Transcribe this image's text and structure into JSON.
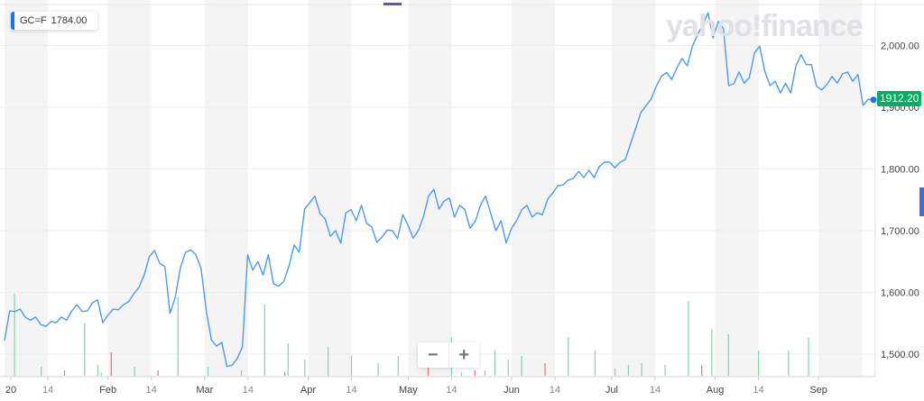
{
  "legend": {
    "symbol": "GC=F",
    "value": "1784.00"
  },
  "watermark": "yahoo!finance",
  "current_price_label": "1912.20",
  "zoom_controls": {
    "minus": "−",
    "plus": "+"
  },
  "colors": {
    "line": "#4a9af5",
    "up_volume": "#7fd6a8",
    "down_volume": "#f07070",
    "badge": "#00b061",
    "band": "#f4f4f4",
    "grid": "#ececec"
  },
  "chart_data": {
    "type": "line",
    "title": "GC=F",
    "xlabel": "",
    "ylabel": "",
    "x_range_days": [
      0,
      261
    ],
    "ylim": [
      1440,
      2060
    ],
    "grid": true,
    "y_ticks": [
      {
        "value": 1500,
        "label": "1,500.00"
      },
      {
        "value": 1600,
        "label": "1,600.00"
      },
      {
        "value": 1700,
        "label": "1,700.00"
      },
      {
        "value": 1800,
        "label": "1,800.00"
      },
      {
        "value": 1900,
        "label": "1,900.00"
      },
      {
        "value": 2000,
        "label": "2,000.00"
      }
    ],
    "x_ticks": [
      {
        "day": 0,
        "label": "20"
      },
      {
        "day": 13,
        "label": "14"
      },
      {
        "day": 31,
        "label": "Feb"
      },
      {
        "day": 44,
        "label": "14"
      },
      {
        "day": 60,
        "label": "Mar"
      },
      {
        "day": 73,
        "label": "14"
      },
      {
        "day": 91,
        "label": "Apr"
      },
      {
        "day": 104,
        "label": "14"
      },
      {
        "day": 121,
        "label": "May"
      },
      {
        "day": 134,
        "label": "14"
      },
      {
        "day": 152,
        "label": "Jun"
      },
      {
        "day": 165,
        "label": "14"
      },
      {
        "day": 182,
        "label": "Jul"
      },
      {
        "day": 195,
        "label": "14"
      },
      {
        "day": 213,
        "label": "Aug"
      },
      {
        "day": 226,
        "label": "14"
      },
      {
        "day": 244,
        "label": "Sep"
      }
    ],
    "series": [
      {
        "name": "GC=F",
        "values": [
          1522,
          1570,
          1569,
          1573,
          1560,
          1555,
          1560,
          1548,
          1545,
          1553,
          1551,
          1560,
          1555,
          1570,
          1580,
          1569,
          1570,
          1583,
          1588,
          1551,
          1563,
          1573,
          1572,
          1580,
          1585,
          1598,
          1608,
          1628,
          1658,
          1668,
          1647,
          1642,
          1566,
          1592,
          1640,
          1665,
          1669,
          1661,
          1639,
          1570,
          1523,
          1513,
          1519,
          1480,
          1482,
          1493,
          1512,
          1661,
          1636,
          1650,
          1628,
          1661,
          1614,
          1610,
          1618,
          1643,
          1677,
          1665,
          1735,
          1745,
          1756,
          1728,
          1719,
          1691,
          1700,
          1680,
          1729,
          1734,
          1716,
          1741,
          1712,
          1706,
          1681,
          1690,
          1701,
          1700,
          1687,
          1726,
          1709,
          1688,
          1700,
          1723,
          1756,
          1767,
          1735,
          1748,
          1753,
          1722,
          1741,
          1734,
          1704,
          1715,
          1741,
          1756,
          1728,
          1700,
          1716,
          1680,
          1704,
          1716,
          1734,
          1741,
          1722,
          1729,
          1726,
          1751,
          1761,
          1773,
          1774,
          1782,
          1785,
          1796,
          1786,
          1798,
          1786,
          1804,
          1811,
          1811,
          1802,
          1811,
          1815,
          1840,
          1865,
          1891,
          1902,
          1913,
          1934,
          1950,
          1956,
          1945,
          1964,
          1979,
          1967,
          1999,
          2018,
          2033,
          2053,
          2012,
          2039,
          2027,
          1935,
          1938,
          1957,
          1939,
          1948,
          1988,
          1999,
          1958,
          1935,
          1942,
          1923,
          1939,
          1923,
          1967,
          1985,
          1969,
          1969,
          1934,
          1928,
          1937,
          1950,
          1939,
          1954,
          1957,
          1942,
          1953,
          1903,
          1913,
          1912
        ]
      }
    ],
    "volume_relative": [
      {
        "day": 3,
        "v": 91,
        "dir": "up"
      },
      {
        "day": 11,
        "v": 10,
        "dir": "up"
      },
      {
        "day": 18,
        "v": 6,
        "dir": "down"
      },
      {
        "day": 24,
        "v": 58,
        "dir": "up"
      },
      {
        "day": 28,
        "v": 12,
        "dir": "up"
      },
      {
        "day": 29,
        "v": 4,
        "dir": "up"
      },
      {
        "day": 32,
        "v": 26,
        "dir": "down"
      },
      {
        "day": 39,
        "v": 10,
        "dir": "up"
      },
      {
        "day": 46,
        "v": 6,
        "dir": "down"
      },
      {
        "day": 52,
        "v": 88,
        "dir": "up"
      },
      {
        "day": 61,
        "v": 10,
        "dir": "up"
      },
      {
        "day": 71,
        "v": 6,
        "dir": "up"
      },
      {
        "day": 78,
        "v": 79,
        "dir": "up"
      },
      {
        "day": 84,
        "v": 4,
        "dir": "down"
      },
      {
        "day": 85,
        "v": 36,
        "dir": "up"
      },
      {
        "day": 90,
        "v": 18,
        "dir": "up"
      },
      {
        "day": 97,
        "v": 32,
        "dir": "up"
      },
      {
        "day": 104,
        "v": 22,
        "dir": "up"
      },
      {
        "day": 112,
        "v": 14,
        "dir": "up"
      },
      {
        "day": 118,
        "v": 22,
        "dir": "up"
      },
      {
        "day": 127,
        "v": 10,
        "dir": "down"
      },
      {
        "day": 134,
        "v": 43,
        "dir": "up"
      },
      {
        "day": 137,
        "v": 4,
        "dir": "up"
      },
      {
        "day": 141,
        "v": 6,
        "dir": "down"
      },
      {
        "day": 144,
        "v": 6,
        "dir": "up"
      },
      {
        "day": 147,
        "v": 28,
        "dir": "up"
      },
      {
        "day": 151,
        "v": 18,
        "dir": "up"
      },
      {
        "day": 155,
        "v": 22,
        "dir": "up"
      },
      {
        "day": 162,
        "v": 14,
        "dir": "down"
      },
      {
        "day": 169,
        "v": 43,
        "dir": "up"
      },
      {
        "day": 177,
        "v": 28,
        "dir": "up"
      },
      {
        "day": 183,
        "v": 8,
        "dir": "up"
      },
      {
        "day": 187,
        "v": 12,
        "dir": "up"
      },
      {
        "day": 191,
        "v": 14,
        "dir": "up"
      },
      {
        "day": 198,
        "v": 12,
        "dir": "up"
      },
      {
        "day": 205,
        "v": 83,
        "dir": "up"
      },
      {
        "day": 209,
        "v": 12,
        "dir": "down"
      },
      {
        "day": 212,
        "v": 52,
        "dir": "up"
      },
      {
        "day": 217,
        "v": 46,
        "dir": "up"
      },
      {
        "day": 226,
        "v": 28,
        "dir": "up"
      },
      {
        "day": 235,
        "v": 28,
        "dir": "up"
      },
      {
        "day": 241,
        "v": 42,
        "dir": "up"
      },
      {
        "day": 261,
        "v": 4,
        "dir": "up"
      }
    ]
  }
}
